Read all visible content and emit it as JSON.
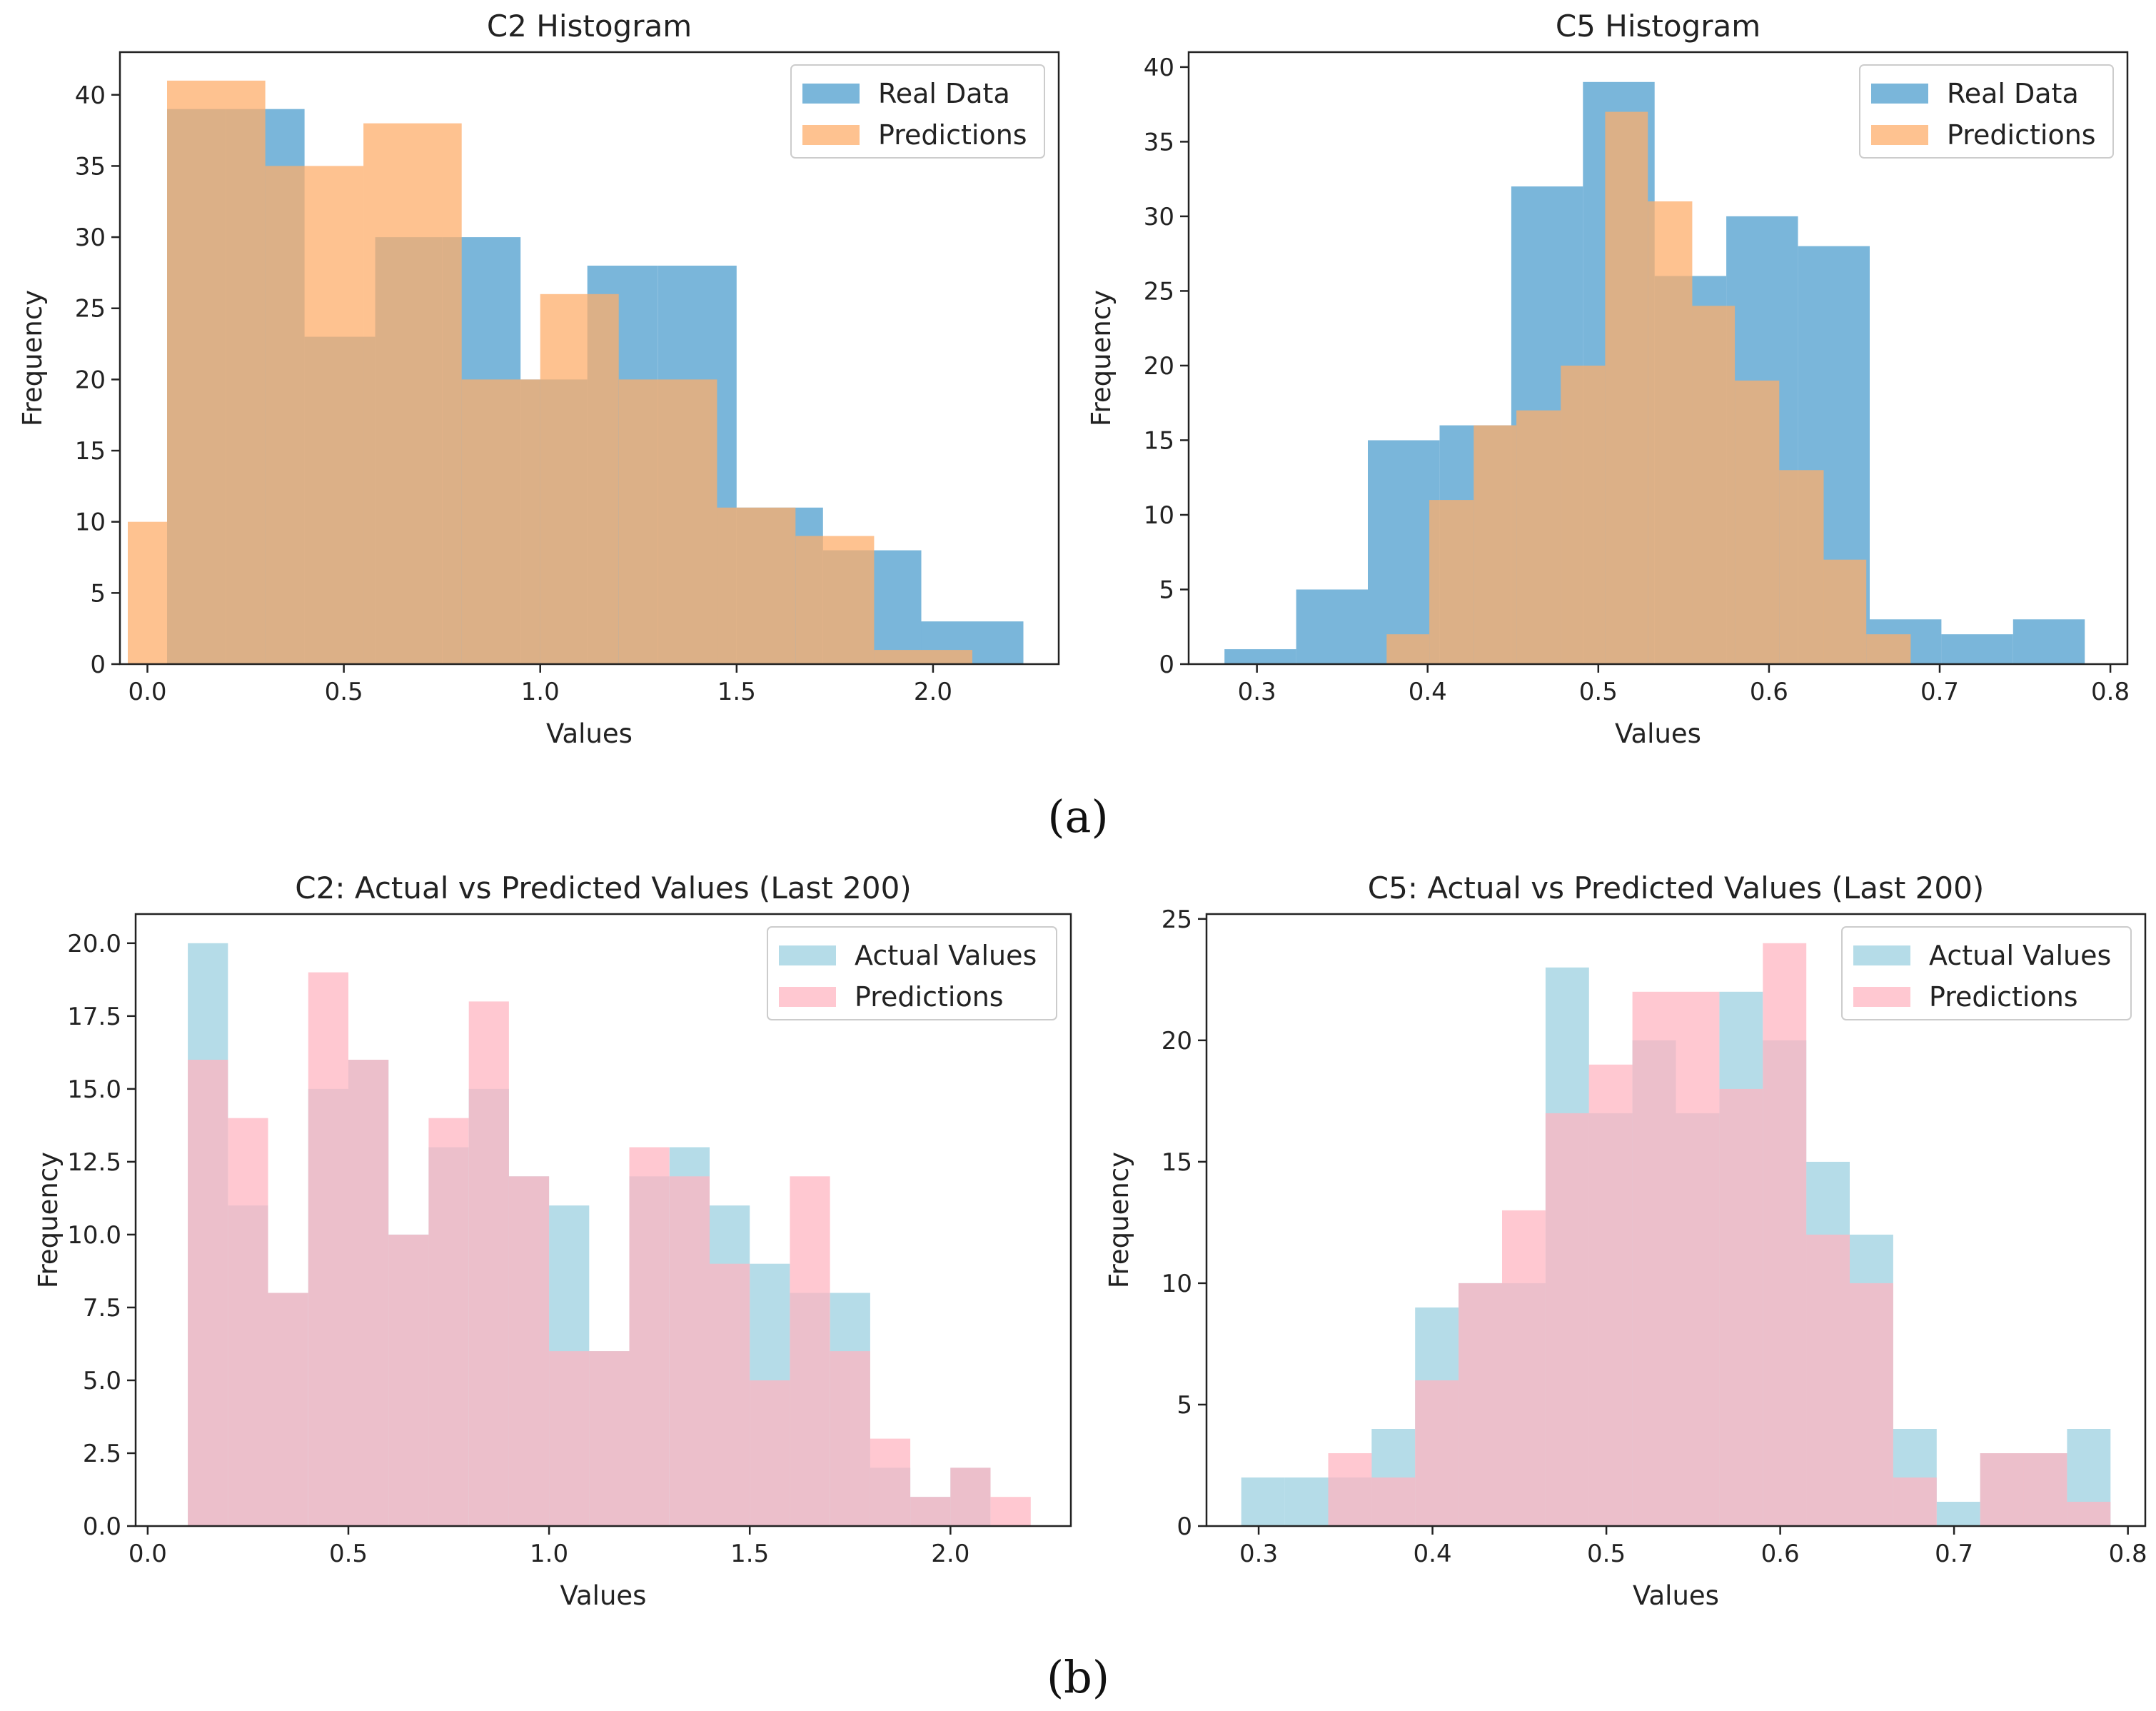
{
  "captions": {
    "a": "(a)",
    "b": "(b)"
  },
  "chart_data": [
    {
      "type": "bar",
      "subtype": "histogram",
      "title": "C2 Histogram",
      "xlabel": "Values",
      "ylabel": "Frequency",
      "xlim": [
        -0.07,
        2.32
      ],
      "ylim": [
        0,
        43
      ],
      "xticks": [
        0.0,
        0.5,
        1.0,
        1.5,
        2.0
      ],
      "xtick_labels": [
        "0.0",
        "0.5",
        "1.0",
        "1.5",
        "2.0"
      ],
      "yticks": [
        0,
        5,
        10,
        15,
        20,
        25,
        30,
        35,
        40
      ],
      "ytick_labels": [
        "0",
        "5",
        "10",
        "15",
        "20",
        "25",
        "30",
        "35",
        "40"
      ],
      "legend": "top-right",
      "series": [
        {
          "name": "Real Data",
          "color": "#6baed6",
          "edges": [
            0.05,
            0.2,
            0.4,
            0.58,
            0.75,
            0.95,
            1.12,
            1.3,
            1.5,
            1.72,
            1.97,
            2.23
          ],
          "values": [
            39,
            39,
            23,
            30,
            30,
            20,
            28,
            28,
            11,
            8,
            3
          ]
        },
        {
          "name": "Predictions",
          "color": "#fdae6b",
          "edges": [
            -0.05,
            0.05,
            0.3,
            0.55,
            0.8,
            1.0,
            1.2,
            1.45,
            1.65,
            1.85,
            2.1,
            2.23
          ],
          "values": [
            10,
            41,
            35,
            38,
            20,
            26,
            20,
            11,
            9,
            1,
            0
          ]
        }
      ]
    },
    {
      "type": "bar",
      "subtype": "histogram",
      "title": "C5 Histogram",
      "xlabel": "Values",
      "ylabel": "Frequency",
      "xlim": [
        0.26,
        0.81
      ],
      "ylim": [
        0,
        41
      ],
      "xticks": [
        0.3,
        0.4,
        0.5,
        0.6,
        0.7,
        0.8
      ],
      "xtick_labels": [
        "0.3",
        "0.4",
        "0.5",
        "0.6",
        "0.7",
        "0.8"
      ],
      "yticks": [
        0,
        5,
        10,
        15,
        20,
        25,
        30,
        35,
        40
      ],
      "ytick_labels": [
        "0",
        "5",
        "10",
        "15",
        "20",
        "25",
        "30",
        "35",
        "40"
      ],
      "legend": "top-right",
      "series": [
        {
          "name": "Real Data",
          "color": "#6baed6",
          "edges": [
            0.281,
            0.323,
            0.365,
            0.407,
            0.449,
            0.491,
            0.533,
            0.575,
            0.617,
            0.659,
            0.701,
            0.743,
            0.785
          ],
          "values": [
            1,
            5,
            15,
            16,
            32,
            39,
            26,
            30,
            28,
            3,
            2,
            3
          ]
        },
        {
          "name": "Predictions",
          "color": "#fdae6b",
          "edges": [
            0.376,
            0.401,
            0.427,
            0.452,
            0.478,
            0.504,
            0.529,
            0.555,
            0.58,
            0.606,
            0.632,
            0.657,
            0.683
          ],
          "values": [
            2,
            11,
            16,
            17,
            20,
            37,
            31,
            24,
            19,
            13,
            7,
            2
          ]
        }
      ]
    },
    {
      "type": "bar",
      "subtype": "histogram",
      "title": "C2: Actual vs Predicted Values (Last 200)",
      "xlabel": "Values",
      "ylabel": "Frequency",
      "xlim": [
        -0.03,
        2.3
      ],
      "ylim": [
        0,
        21
      ],
      "xticks": [
        0.0,
        0.5,
        1.0,
        1.5,
        2.0
      ],
      "xtick_labels": [
        "0.0",
        "0.5",
        "1.0",
        "1.5",
        "2.0"
      ],
      "yticks": [
        0,
        2.5,
        5,
        7.5,
        10,
        12.5,
        15,
        17.5,
        20
      ],
      "ytick_labels": [
        "0.0",
        "2.5",
        "5.0",
        "7.5",
        "10.0",
        "12.5",
        "15.0",
        "17.5",
        "20.0"
      ],
      "legend": "top-right",
      "series": [
        {
          "name": "Actual Values",
          "color": "#add8e6",
          "edges": [
            0.1,
            0.2,
            0.3,
            0.4,
            0.5,
            0.6,
            0.7,
            0.8,
            0.9,
            1.0,
            1.1,
            1.2,
            1.3,
            1.4,
            1.5,
            1.6,
            1.7,
            1.8,
            1.9,
            2.0,
            2.1,
            2.2
          ],
          "values": [
            20,
            11,
            8,
            15,
            16,
            10,
            13,
            15,
            12,
            11,
            6,
            12,
            13,
            11,
            9,
            8,
            8,
            2,
            1,
            2,
            0
          ]
        },
        {
          "name": "Predictions",
          "color": "#ffb6c1",
          "edges": [
            0.1,
            0.2,
            0.3,
            0.4,
            0.5,
            0.6,
            0.7,
            0.8,
            0.9,
            1.0,
            1.1,
            1.2,
            1.3,
            1.4,
            1.5,
            1.6,
            1.7,
            1.8,
            1.9,
            2.0,
            2.1,
            2.2
          ],
          "values": [
            16,
            14,
            8,
            19,
            16,
            10,
            14,
            18,
            12,
            6,
            6,
            13,
            12,
            9,
            5,
            12,
            6,
            3,
            1,
            2,
            1
          ]
        }
      ]
    },
    {
      "type": "bar",
      "subtype": "histogram",
      "title": "C5: Actual vs Predicted Values (Last 200)",
      "xlabel": "Values",
      "ylabel": "Frequency",
      "xlim": [
        0.27,
        0.81
      ],
      "ylim": [
        0,
        25.2
      ],
      "xticks": [
        0.3,
        0.4,
        0.5,
        0.6,
        0.7,
        0.8
      ],
      "xtick_labels": [
        "0.3",
        "0.4",
        "0.5",
        "0.6",
        "0.7",
        "0.8"
      ],
      "yticks": [
        0,
        5,
        10,
        15,
        20,
        25
      ],
      "ytick_labels": [
        "0",
        "5",
        "10",
        "15",
        "20",
        "25"
      ],
      "legend": "top-right",
      "series": [
        {
          "name": "Actual Values",
          "color": "#add8e6",
          "edges": [
            0.29,
            0.315,
            0.34,
            0.365,
            0.39,
            0.415,
            0.44,
            0.465,
            0.49,
            0.515,
            0.54,
            0.565,
            0.59,
            0.615,
            0.64,
            0.665,
            0.69,
            0.715,
            0.74,
            0.765,
            0.79
          ],
          "values": [
            2,
            2,
            2,
            4,
            9,
            10,
            10,
            23,
            17,
            20,
            17,
            22,
            20,
            15,
            12,
            4,
            1,
            3,
            3,
            4
          ]
        },
        {
          "name": "Predictions",
          "color": "#ffb6c1",
          "edges": [
            0.315,
            0.34,
            0.365,
            0.39,
            0.415,
            0.44,
            0.465,
            0.49,
            0.515,
            0.54,
            0.565,
            0.59,
            0.615,
            0.64,
            0.665,
            0.69,
            0.715,
            0.74,
            0.765,
            0.79
          ],
          "values": [
            0,
            3,
            2,
            6,
            10,
            13,
            17,
            19,
            22,
            22,
            18,
            24,
            12,
            10,
            2,
            0,
            3,
            3,
            1
          ]
        }
      ]
    }
  ]
}
